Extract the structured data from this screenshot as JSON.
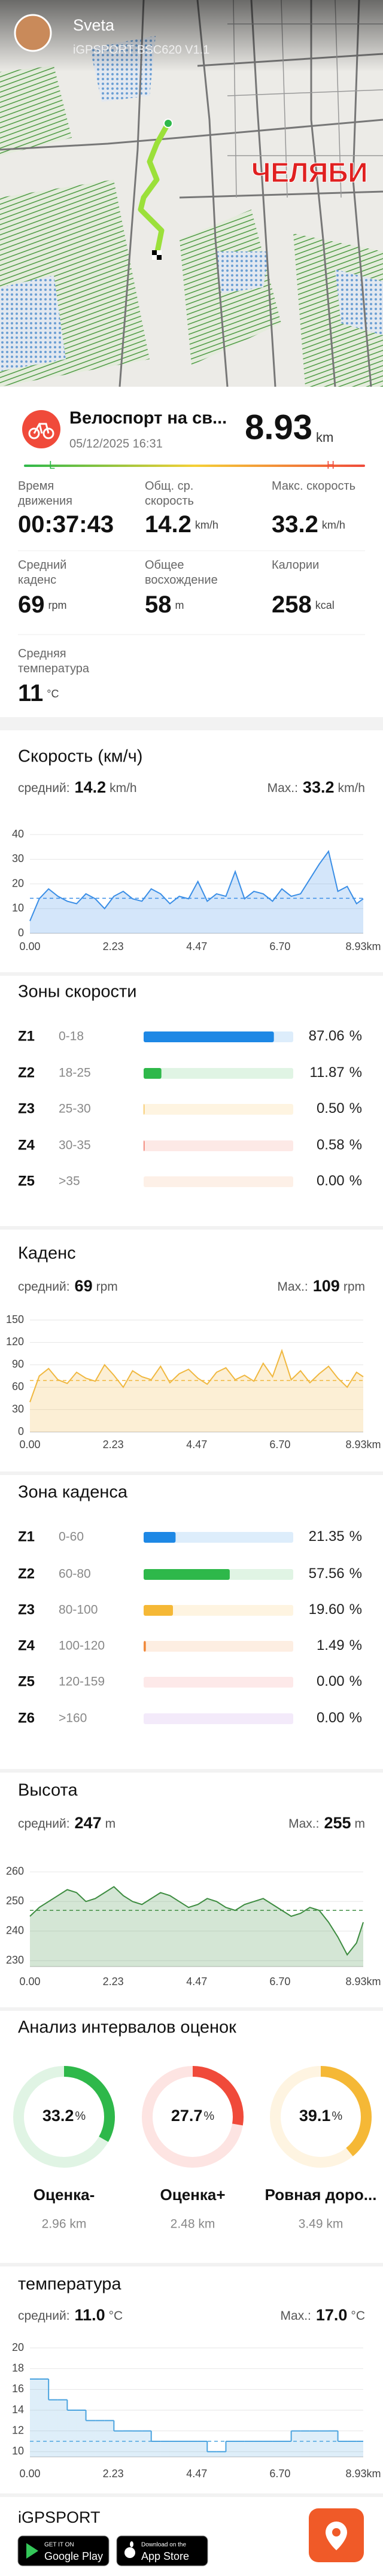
{
  "map": {
    "user": "Sveta",
    "device": "iGPSPORT BSC620 V1.1",
    "city": "ЧЕЛЯБИ"
  },
  "activity": {
    "title": "Велоспорт на св...",
    "date": "05/12/2025 16:31",
    "distance": "8.93",
    "unit": "km",
    "low": "L",
    "high": "H"
  },
  "stats": [
    {
      "label": "Время движения",
      "value": "00:37:43"
    },
    {
      "label": "Общ. ср. скорость",
      "value": "14.2",
      "unit": "km/h"
    },
    {
      "label": "Макс. скорость",
      "value": "33.2",
      "unit": "km/h"
    },
    {
      "label": "Средний каденс",
      "value": "69",
      "unit": "rpm"
    },
    {
      "label": "Общее восхождение",
      "value": "58",
      "unit": "m"
    },
    {
      "label": "Калории",
      "value": "258",
      "unit": "kcal"
    },
    {
      "label": "Средняя температура",
      "value": "11",
      "unit": "°C"
    }
  ],
  "chart_data": [
    {
      "type": "area",
      "title": "Скорость (км/ч)",
      "avg_label": "средний:",
      "avg": 14.2,
      "max_label": "Max.:",
      "max": 33.2,
      "unit": "km/h",
      "grid": true,
      "x": [
        0,
        0.25,
        0.5,
        0.75,
        1,
        1.25,
        1.5,
        1.75,
        2,
        2.25,
        2.5,
        2.75,
        3,
        3.25,
        3.5,
        3.75,
        4,
        4.25,
        4.5,
        4.75,
        5,
        5.25,
        5.5,
        5.75,
        6,
        6.25,
        6.5,
        6.75,
        7,
        7.25,
        7.5,
        7.75,
        8,
        8.25,
        8.5,
        8.75,
        8.93
      ],
      "series": [
        {
          "color": "#3a8ee6",
          "values": [
            5,
            14,
            18,
            15,
            13,
            12,
            16,
            14,
            10,
            15,
            17,
            14,
            13,
            18,
            16,
            12,
            15,
            14,
            21,
            13,
            16,
            15,
            25,
            14,
            17,
            16,
            13,
            18,
            15,
            16,
            22,
            28,
            33.2,
            17,
            19,
            12,
            14
          ]
        }
      ],
      "xlim": [
        0,
        8.93
      ],
      "xticks": [
        {
          "value": 0,
          "label": "0.00"
        },
        2.23,
        4.47,
        {
          "value": 6.7,
          "label": "6.70"
        },
        {
          "value": 8.93,
          "label": "8.93km"
        }
      ],
      "ylim": [
        0,
        41
      ],
      "yticks": [
        0,
        10,
        20,
        30,
        40
      ]
    },
    {
      "type": "area",
      "title": "Каденс",
      "avg_label": "средний:",
      "avg": 69,
      "max_label": "Max.:",
      "max": 109,
      "unit": "rpm",
      "grid": true,
      "x": [
        0,
        0.25,
        0.5,
        0.75,
        1,
        1.25,
        1.5,
        1.75,
        2,
        2.25,
        2.5,
        2.75,
        3,
        3.25,
        3.5,
        3.75,
        4,
        4.25,
        4.5,
        4.75,
        5,
        5.25,
        5.5,
        5.75,
        6,
        6.25,
        6.5,
        6.75,
        7,
        7.25,
        7.5,
        7.75,
        8,
        8.25,
        8.5,
        8.75,
        8.93
      ],
      "series": [
        {
          "color": "#f0b840",
          "values": [
            40,
            75,
            85,
            70,
            65,
            80,
            72,
            68,
            90,
            76,
            60,
            82,
            74,
            70,
            88,
            66,
            78,
            84,
            72,
            64,
            80,
            86,
            70,
            76,
            68,
            92,
            74,
            109,
            70,
            82,
            66,
            78,
            88,
            72,
            60,
            80,
            74
          ]
        }
      ],
      "xlim": [
        0,
        8.93
      ],
      "xticks": [
        {
          "value": 0,
          "label": "0.00"
        },
        2.23,
        4.47,
        {
          "value": 6.7,
          "label": "6.70"
        },
        {
          "value": 8.93,
          "label": "8.93km"
        }
      ],
      "ylim": [
        0,
        150
      ],
      "yticks": [
        0,
        30,
        60,
        90,
        120,
        150
      ]
    },
    {
      "type": "area",
      "title": "Высота",
      "avg_label": "средний:",
      "avg": 247,
      "max_label": "Max.:",
      "max": 255,
      "unit": "m",
      "grid": true,
      "x": [
        0,
        0.25,
        0.5,
        0.75,
        1,
        1.25,
        1.5,
        1.75,
        2,
        2.25,
        2.5,
        2.75,
        3,
        3.25,
        3.5,
        3.75,
        4,
        4.25,
        4.5,
        4.75,
        5,
        5.25,
        5.5,
        5.75,
        6,
        6.25,
        6.5,
        6.75,
        7,
        7.25,
        7.5,
        7.75,
        8,
        8.25,
        8.5,
        8.75,
        8.93
      ],
      "series": [
        {
          "color": "#3d8c40",
          "values": [
            245,
            248,
            250,
            252,
            254,
            253,
            250,
            251,
            253,
            255,
            252,
            250,
            249,
            251,
            253,
            252,
            250,
            248,
            249,
            251,
            250,
            248,
            247,
            249,
            250,
            251,
            249,
            247,
            245,
            246,
            248,
            247,
            243,
            238,
            232,
            236,
            243
          ]
        }
      ],
      "xlim": [
        0,
        8.93
      ],
      "xticks": [
        {
          "value": 0,
          "label": "0.00"
        },
        2.23,
        4.47,
        {
          "value": 6.7,
          "label": "6.70"
        },
        {
          "value": 8.93,
          "label": "8.93km"
        }
      ],
      "ylim": [
        228,
        262
      ],
      "yticks": [
        230,
        240,
        250,
        260
      ]
    },
    {
      "type": "step",
      "title": "температура",
      "avg_label": "средний:",
      "avg": {
        "value": 11,
        "label": "11.0"
      },
      "max_label": "Max.:",
      "max": {
        "value": 17,
        "label": "17.0"
      },
      "unit": "°C",
      "grid": true,
      "x": [
        0,
        0.25,
        0.5,
        0.75,
        1,
        1.25,
        1.5,
        1.75,
        2,
        2.25,
        2.5,
        2.75,
        3,
        3.25,
        3.5,
        3.75,
        4,
        4.25,
        4.5,
        4.75,
        5,
        5.25,
        5.5,
        5.75,
        6,
        6.25,
        6.5,
        6.75,
        7,
        7.25,
        7.5,
        7.75,
        8,
        8.25,
        8.5,
        8.75,
        8.93
      ],
      "series": [
        {
          "color": "#4aa3df",
          "values": [
            17,
            17,
            15,
            15,
            14,
            14,
            13,
            13,
            13,
            12,
            12,
            12,
            12,
            11,
            11,
            11,
            11,
            11,
            11,
            10,
            10,
            11,
            11,
            11,
            11,
            11,
            11,
            11,
            12,
            12,
            12,
            12,
            12,
            11,
            11,
            11,
            11
          ]
        }
      ],
      "xlim": [
        0,
        8.93
      ],
      "xticks": [
        {
          "value": 0,
          "label": "0.00"
        },
        2.23,
        4.47,
        {
          "value": 6.7,
          "label": "6.70"
        },
        {
          "value": 8.93,
          "label": "8.93km"
        }
      ],
      "ylim": [
        9.5,
        20
      ],
      "yticks": [
        10,
        12,
        14,
        16,
        18,
        20
      ]
    }
  ],
  "speed_zones": {
    "title": "Зоны скорости",
    "unit": "%",
    "rows": [
      {
        "zone": "Z1",
        "range": "0-18",
        "value": 87.06,
        "value_label": "87.06",
        "color": "#1e88e5"
      },
      {
        "zone": "Z2",
        "range": "18-25",
        "value": 11.87,
        "value_label": "11.87",
        "color": "#2eb84a"
      },
      {
        "zone": "Z3",
        "range": "25-30",
        "value": 0.5,
        "value_label": "0.50",
        "color": "#f5b836"
      },
      {
        "zone": "Z4",
        "range": "30-35",
        "value": 0.58,
        "value_label": "0.58",
        "color": "#f06a5a"
      },
      {
        "zone": "Z5",
        "range": ">35",
        "value": 0,
        "value_label": "0.00",
        "color": "#f09a60"
      }
    ]
  },
  "cadence_zones": {
    "title": "Зона каденса",
    "unit": "%",
    "rows": [
      {
        "zone": "Z1",
        "range": "0-60",
        "value": 21.35,
        "value_label": "21.35",
        "color": "#1e88e5"
      },
      {
        "zone": "Z2",
        "range": "60-80",
        "value": 57.56,
        "value_label": "57.56",
        "color": "#2eb84a"
      },
      {
        "zone": "Z3",
        "range": "80-100",
        "value": 19.6,
        "value_label": "19.60",
        "color": "#f5b836"
      },
      {
        "zone": "Z4",
        "range": "100-120",
        "value": 1.49,
        "value_label": "1.49",
        "color": "#f08a3c"
      },
      {
        "zone": "Z5",
        "range": "120-159",
        "value": 0,
        "value_label": "0.00",
        "color": "#f06a6a"
      },
      {
        "zone": "Z6",
        "range": ">160",
        "value": 0,
        "value_label": "0.00",
        "color": "#b070e0"
      }
    ]
  },
  "intervals": {
    "title": "Анализ интервалов оценок",
    "unit": "%",
    "items": [
      {
        "name": "Оценка-",
        "value": 33.2,
        "distance": "2.96 km",
        "color": "#2eb84a"
      },
      {
        "name": "Оценка+",
        "value": 27.7,
        "distance": "2.48 km",
        "color": "#f04a3a"
      },
      {
        "name": "Ровная доро...",
        "value": 39.1,
        "distance": "3.49 km",
        "color": "#f5b836"
      }
    ]
  },
  "footer": {
    "brand": "iGPSPORT",
    "google_top": "GET IT ON",
    "google": "Google Play",
    "apple_top": "Download on the",
    "apple": "App Store"
  }
}
